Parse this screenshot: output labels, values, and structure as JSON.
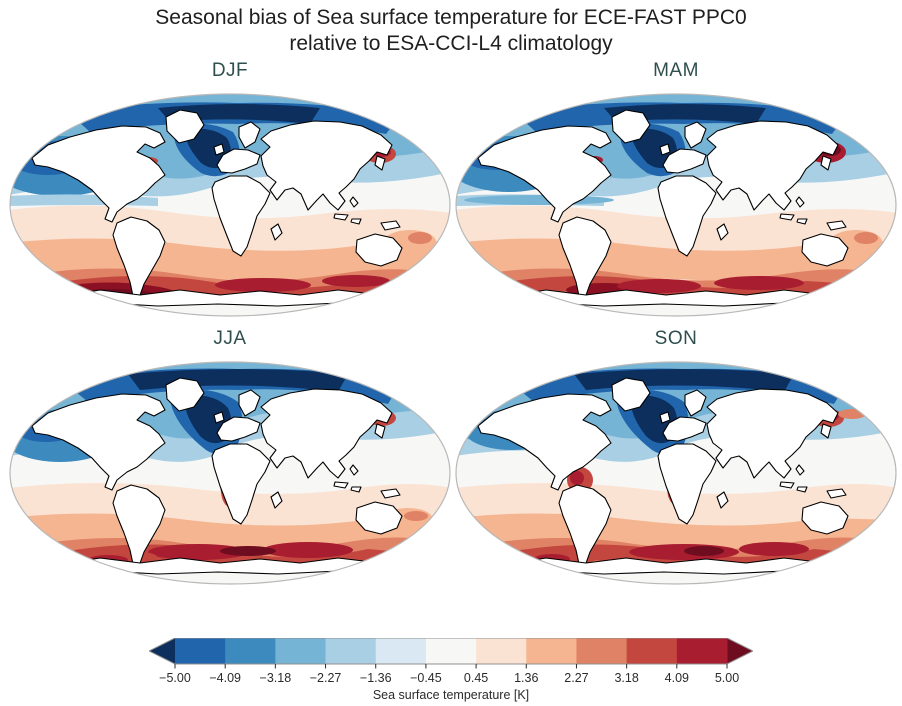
{
  "figure": {
    "title_line1": "Seasonal bias of Sea surface temperature for ECE-FAST PPC0",
    "title_line2": "relative to ESA-CCI-L4 climatology",
    "background_color": "#ffffff",
    "title_color": "#1f1f1f",
    "season_label_color": "#2f4f4f"
  },
  "chart_data": {
    "type": "heatmap",
    "subtype": "filled-contour global maps, Robinson projection, 2x2 seasonal panels",
    "title": "Seasonal bias of Sea surface temperature for ECE-FAST PPC0 relative to ESA-CCI-L4 climatology",
    "variable": "Sea surface temperature bias",
    "units": "K",
    "value_range": [
      -5.0,
      5.0
    ],
    "panels": [
      {
        "label": "DJF",
        "features": [
          "Cold bias (-1 to -5 K) over North Pacific, North Atlantic and Arctic oceans",
          "Strongest cold bias (< -5 K) in subpolar North Atlantic and Nordic Seas",
          "Warm bias (+1 to +3 K) across subtropical and mid-latitude Southern Hemisphere oceans",
          "Strong warm bias (> +4 K) along the Antarctic sea-ice edge, darkest in the Atlantic sector",
          "Localized warm bias near the Kuroshio extension and Gulf Stream"
        ]
      },
      {
        "label": "MAM",
        "features": [
          "Cold bias over North Pacific, North Atlantic and Arctic, similar to DJF",
          "Pronounced warm bias (> +5 K) in the Kuroshio region east of Japan",
          "Cold tongue along the eastern equatorial Pacific",
          "Broad warm bias band over the Southern Ocean with dark-red maxima around 55-65 S"
        ]
      },
      {
        "label": "JJA",
        "features": [
          "Very strong cold bias (< -5 K) across the Arctic Ocean and subpolar North Atlantic",
          "Moderate cold bias patch in the central North Pacific",
          "Strong warm-bias plume off southwestern Africa (Benguela upwelling)",
          "Warm bias band (+2 to +5 K) over the Southern Ocean around 45-60 S",
          "Warm spot east of Japan; waters near the Antarctic coast close to neutral"
        ]
      },
      {
        "label": "SON",
        "features": [
          "Strong cold bias in the Arctic and subpolar North Atlantic",
          "Warm coastal bias off Peru and off southwestern Africa",
          "Warm bias band over the Southern Ocean with maxima in the Indian and Atlantic sectors",
          "Warm bias northeast of Japan"
        ]
      }
    ],
    "colorbar": {
      "orientation": "horizontal",
      "label": "Sea surface temperature [K]",
      "boundaries": [
        -5.0,
        -4.09,
        -3.18,
        -2.27,
        -1.36,
        -0.45,
        0.45,
        1.36,
        2.27,
        3.18,
        4.09,
        5.0
      ],
      "tick_labels": [
        "−5.00",
        "−4.09",
        "−3.18",
        "−2.27",
        "−1.36",
        "−0.45",
        "0.45",
        "1.36",
        "2.27",
        "3.18",
        "4.09",
        "5.00"
      ],
      "colors": [
        "#2166ac",
        "#3c8abe",
        "#76b4d5",
        "#a8cfe4",
        "#d9e8f2",
        "#f7f7f6",
        "#fbe3d4",
        "#f5b591",
        "#e08265",
        "#c4473f",
        "#a81d2f"
      ],
      "extend_low_color": "#0c2f5e",
      "extend_high_color": "#6e0d20",
      "outline_color": "#8f8f8f",
      "tick_color": "#2b2b2b"
    },
    "land_fill": "#ffffff",
    "coastline_color": "#000000",
    "map_outline_color": "#b8b8b8"
  }
}
